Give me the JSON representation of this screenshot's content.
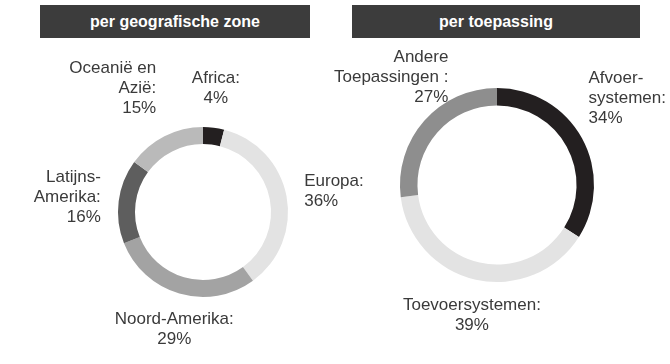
{
  "chart_data": [
    {
      "type": "doughnut",
      "title": "per geografische zone",
      "categories": [
        "Africa:",
        "Europa:",
        "Noord-Amerika:",
        "Latijns-\nAmerika:",
        "Oceanië en\nAzië:"
      ],
      "values": [
        4,
        36,
        29,
        16,
        15
      ],
      "value_labels": [
        "4%",
        "36%",
        "29%",
        "16%",
        "15%"
      ],
      "colors": [
        "#231f20",
        "#e3e3e3",
        "#a3a3a3",
        "#5e5e5e",
        "#bababa"
      ],
      "data_labels": true
    },
    {
      "type": "doughnut",
      "title": "per toepassing",
      "categories": [
        "Afvoer-\nsystemen:",
        "Toevoersystemen:",
        "Andere\nToepassingen :"
      ],
      "values": [
        34,
        39,
        27
      ],
      "value_labels": [
        "34%",
        "39%",
        "27%"
      ],
      "colors": [
        "#231f20",
        "#e3e3e3",
        "#8e8e8e"
      ],
      "data_labels": true
    }
  ]
}
